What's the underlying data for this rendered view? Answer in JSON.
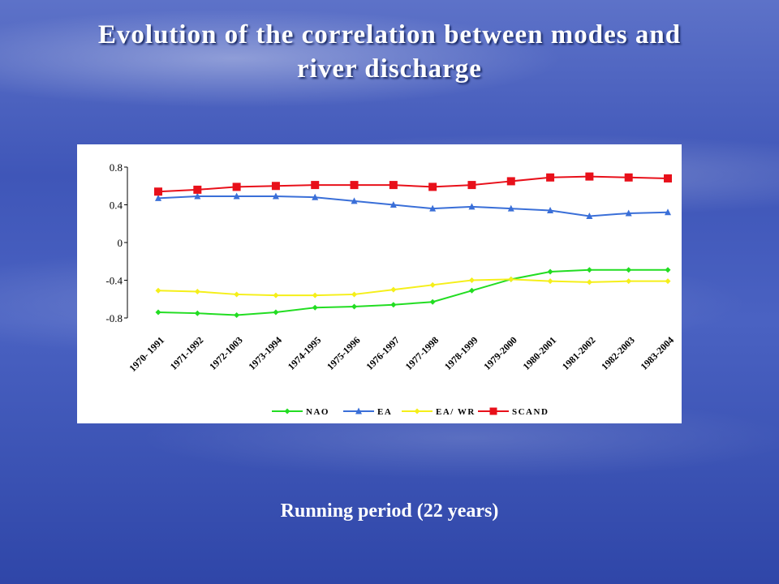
{
  "title_line1": "Evolution of the correlation between modes and",
  "title_line2": "river discharge",
  "footer": "Running period (22 years)",
  "chart_data": {
    "type": "line",
    "categories": [
      "1970- 1991",
      "1971-1992",
      "1972-1003",
      "1973-1994",
      "1974-1995",
      "1975-1996",
      "1976-1997",
      "1977-1998",
      "1978-1999",
      "1979-2000",
      "1980-2001",
      "1981-2002",
      "1982-2003",
      "1983-2004"
    ],
    "ylim": [
      -0.8,
      0.8
    ],
    "yticks": [
      "0.8",
      "0.4",
      "0",
      "-0.4",
      "-0.8"
    ],
    "yticks_values": [
      0.8,
      0.4,
      0,
      -0.4,
      -0.8
    ],
    "grid": false,
    "legend_position": "bottom",
    "series": [
      {
        "name": "NAO",
        "color": "#22dd22",
        "marker": "diamond",
        "values": [
          -0.74,
          -0.75,
          -0.77,
          -0.74,
          -0.69,
          -0.68,
          -0.66,
          -0.63,
          -0.51,
          -0.39,
          -0.31,
          -0.29,
          -0.29,
          -0.29
        ],
        "x": [
          0,
          0.5,
          1,
          1.5,
          2,
          2.5,
          3,
          3.5,
          4,
          4.5,
          5,
          5.5,
          6,
          6.5
        ]
      },
      {
        "name": "EA",
        "color": "#3a6fd8",
        "marker": "triangle",
        "values": [
          0.47,
          0.49,
          0.49,
          0.49,
          0.48,
          0.44,
          0.4,
          0.36,
          0.38,
          0.36,
          0.34,
          0.28,
          0.31,
          0.32
        ],
        "x": [
          0,
          0.5,
          1,
          1.5,
          2,
          2.5,
          3,
          3.5,
          4,
          4.5,
          5,
          5.5,
          6,
          6.5
        ]
      },
      {
        "name": "EA/ WR",
        "color": "#f5ef1a",
        "marker": "diamond",
        "values": [
          -0.51,
          -0.52,
          -0.55,
          -0.56,
          -0.56,
          -0.55,
          -0.5,
          -0.45,
          -0.4,
          -0.39,
          -0.41,
          -0.42,
          -0.41,
          -0.41
        ],
        "x": [
          0,
          0.5,
          1,
          1.5,
          2,
          2.5,
          3,
          3.5,
          4,
          4.5,
          5,
          5.5,
          6,
          6.5
        ]
      },
      {
        "name": "SCAND",
        "color": "#e8101a",
        "marker": "square",
        "values": [
          0.54,
          0.56,
          0.59,
          0.6,
          0.61,
          0.61,
          0.61,
          0.59,
          0.61,
          0.65,
          0.69,
          0.7,
          0.69,
          0.68
        ],
        "x": [
          0,
          0.5,
          1,
          1.5,
          2,
          2.5,
          3,
          3.5,
          4,
          4.5,
          5,
          5.5,
          6,
          6.5
        ]
      }
    ]
  }
}
